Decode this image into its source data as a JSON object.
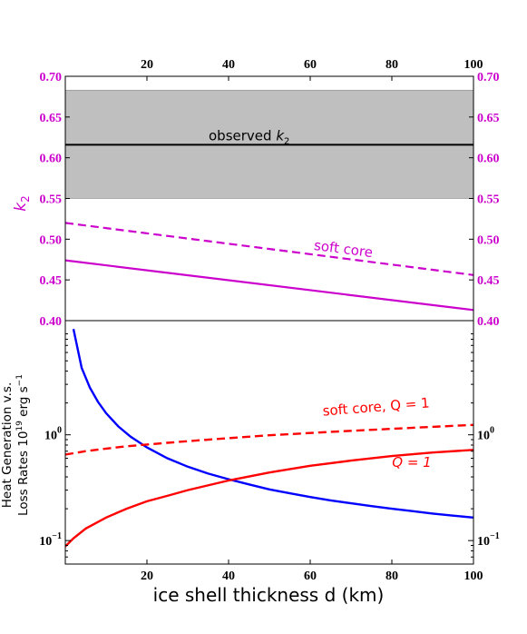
{
  "chart_data": [
    {
      "type": "line",
      "panel": "top",
      "ylabel": "k",
      "ylabel_sub": "2",
      "xlim": [
        0,
        100
      ],
      "ylim": [
        0.4,
        0.7
      ],
      "yticks": [
        "0.40",
        "0.45",
        "0.50",
        "0.55",
        "0.60",
        "0.65",
        "0.70"
      ],
      "top_xticks": [
        "20",
        "40",
        "60",
        "80",
        "100"
      ],
      "band": {
        "y_low": 0.55,
        "y_high": 0.683,
        "color": "#bfbfbf"
      },
      "observed_line": {
        "y": 0.616,
        "label": "observed ",
        "label_sub": "2",
        "label_var": "k"
      },
      "series": [
        {
          "name": "soft core",
          "style": "dashed",
          "color": "#cc00cc",
          "x": [
            0,
            100
          ],
          "y": [
            0.52,
            0.456
          ]
        },
        {
          "style": "solid",
          "color": "#cc00cc",
          "x": [
            0,
            100
          ],
          "y": [
            0.474,
            0.413
          ]
        }
      ],
      "colors": {
        "axis_labels": "#cc00cc"
      }
    },
    {
      "type": "line",
      "panel": "bottom",
      "xlabel": "ice shell thickness d (km)",
      "ylabel_line1": "Heat Generation v.s.",
      "ylabel_line2": "Loss Rates 10",
      "ylabel_exp": "19",
      "ylabel_unit": " erg s",
      "ylabel_unit_exp": "−1",
      "xlim": [
        0,
        100
      ],
      "ylim": [
        0.06,
        12
      ],
      "yscale": "log",
      "xticks": [
        "20",
        "40",
        "60",
        "80",
        "100"
      ],
      "yticks": [
        {
          "base": "10",
          "exp": "−1",
          "value": 0.1
        },
        {
          "base": "10",
          "exp": "0",
          "value": 1
        }
      ],
      "series": [
        {
          "color": "#0000ff",
          "style": "solid",
          "x": [
            2,
            4,
            6,
            8,
            10,
            13,
            16,
            20,
            25,
            30,
            35,
            40,
            45,
            50,
            55,
            60,
            65,
            70,
            75,
            80,
            85,
            90,
            95,
            100
          ],
          "y": [
            10.0,
            4.3,
            2.8,
            2.05,
            1.6,
            1.2,
            0.96,
            0.76,
            0.6,
            0.5,
            0.43,
            0.38,
            0.34,
            0.305,
            0.28,
            0.258,
            0.24,
            0.225,
            0.212,
            0.2,
            0.19,
            0.18,
            0.172,
            0.165
          ]
        },
        {
          "name": "soft core, Q = 1",
          "color": "#ff0000",
          "style": "dashed",
          "x": [
            0,
            5,
            10,
            15,
            20,
            25,
            30,
            40,
            50,
            60,
            70,
            80,
            90,
            100
          ],
          "y": [
            0.65,
            0.7,
            0.74,
            0.78,
            0.81,
            0.84,
            0.87,
            0.93,
            0.99,
            1.04,
            1.09,
            1.14,
            1.19,
            1.24
          ]
        },
        {
          "name": "Q = 1",
          "color": "#ff0000",
          "style": "solid",
          "x": [
            0,
            2,
            5,
            10,
            15,
            20,
            25,
            30,
            40,
            50,
            60,
            70,
            80,
            90,
            100
          ],
          "y": [
            0.088,
            0.105,
            0.13,
            0.165,
            0.2,
            0.235,
            0.265,
            0.3,
            0.37,
            0.44,
            0.51,
            0.57,
            0.63,
            0.68,
            0.72
          ]
        }
      ]
    }
  ]
}
